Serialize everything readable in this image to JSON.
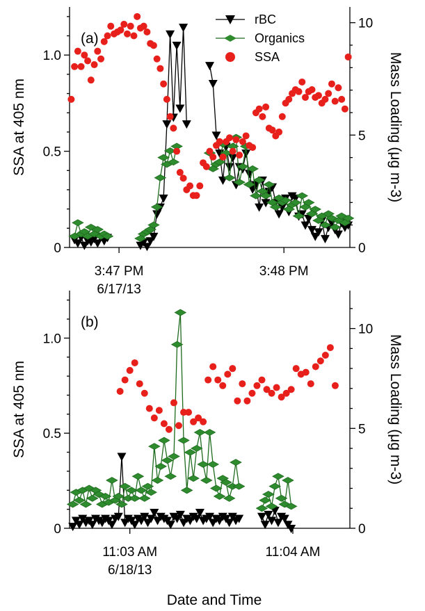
{
  "colors": {
    "rbc": "#000000",
    "organics": "#1e6b1e",
    "organics_fill": "#2e8b2e",
    "ssa": "#e8201c"
  },
  "xlabel": "Date and Time",
  "legend": {
    "rbc": "rBC",
    "organics": "Organics",
    "ssa": "SSA"
  },
  "chart_data": [
    {
      "type": "scatter",
      "panel_label": "(a)",
      "ylabel_left": "SSA at 405 nm",
      "ylabel_right": "Mass Loading (μg m-3)",
      "ylim_left": [
        0,
        1.25
      ],
      "ylim_right": [
        0,
        10.7
      ],
      "xlim_min": [
        46.7,
        48.4
      ],
      "left_ticks": [
        {
          "v": 0,
          "label": "0"
        },
        {
          "v": 0.5,
          "label": "0.5"
        },
        {
          "v": 1.0,
          "label": "1.0"
        }
      ],
      "right_ticks": [
        {
          "v": 0,
          "label": "0"
        },
        {
          "v": 5,
          "label": "5"
        },
        {
          "v": 10,
          "label": "10"
        }
      ],
      "x_ticks": [
        {
          "v": 47,
          "label": "3:47 PM",
          "label2": "6/17/13"
        },
        {
          "v": 48,
          "label": "3:48 PM",
          "label2": ""
        }
      ],
      "series": [
        {
          "name": "rBC",
          "marker": "triangle-down",
          "line": true,
          "x": [
            46.73,
            46.75,
            46.77,
            46.79,
            46.81,
            46.83,
            46.85,
            46.87,
            46.89,
            46.91,
            46.93,
            47.13,
            47.15,
            47.17,
            47.19,
            47.21,
            47.23,
            47.25,
            47.27,
            47.29,
            47.31,
            47.33,
            47.35,
            47.37,
            47.39,
            47.41,
            47.55,
            47.57,
            47.59,
            47.61,
            47.63,
            47.65,
            47.67,
            47.69,
            47.71,
            47.73,
            47.75,
            47.77,
            47.79,
            47.81,
            47.83,
            47.85,
            47.87,
            47.89,
            47.91,
            47.93,
            47.95,
            47.97,
            47.99,
            48.01,
            48.03,
            48.05,
            48.07,
            48.09,
            48.11,
            48.13,
            48.15,
            48.17,
            48.19,
            48.21,
            48.23,
            48.25,
            48.27,
            48.29,
            48.31,
            48.33,
            48.35,
            48.37,
            48.39
          ],
          "y": [
            0.35,
            0.2,
            0.45,
            0.1,
            0.3,
            0.25,
            0.4,
            0.2,
            0.5,
            0.3,
            0.45,
            0.1,
            0.25,
            0.05,
            0.3,
            0.5,
            1.5,
            1.8,
            2.2,
            5.5,
            9.5,
            5.8,
            9.0,
            6.2,
            9.8,
            5.5,
            8.1,
            7.3,
            5.0,
            4.2,
            3.0,
            4.5,
            3.6,
            4.0,
            2.8,
            3.6,
            3.5,
            4.2,
            3.3,
            2.6,
            2.8,
            1.8,
            3.0,
            2.0,
            2.5,
            2.7,
            2.0,
            1.5,
            1.8,
            2.2,
            1.6,
            2.3,
            2.2,
            1.4,
            1.5,
            1.0,
            1.3,
            0.8,
            0.5,
            0.7,
            1.2,
            0.4,
            0.9,
            1.1,
            0.8,
            0.6,
            1.1,
            0.9,
            1.0
          ]
        },
        {
          "name": "Organics",
          "marker": "diamond",
          "line": true,
          "x": [
            46.73,
            46.75,
            46.77,
            46.79,
            46.81,
            46.83,
            46.85,
            46.87,
            46.89,
            46.91,
            46.93,
            47.13,
            47.15,
            47.17,
            47.19,
            47.21,
            47.23,
            47.25,
            47.27,
            47.29,
            47.31,
            47.33,
            47.35,
            47.55,
            47.57,
            47.59,
            47.61,
            47.63,
            47.65,
            47.67,
            47.69,
            47.71,
            47.73,
            47.75,
            47.77,
            47.79,
            47.81,
            47.83,
            47.85,
            47.87,
            47.89,
            47.91,
            47.93,
            47.95,
            47.97,
            47.99,
            48.01,
            48.03,
            48.05,
            48.07,
            48.09,
            48.11,
            48.13,
            48.15,
            48.17,
            48.19,
            48.21,
            48.23,
            48.25,
            48.27,
            48.29,
            48.31,
            48.33,
            48.35,
            48.37,
            48.39
          ],
          "y": [
            0.5,
            1.1,
            0.6,
            0.7,
            0.5,
            0.9,
            0.6,
            0.8,
            0.5,
            0.6,
            0.5,
            0.4,
            0.6,
            0.7,
            0.8,
            1.0,
            1.8,
            3.1,
            4.0,
            3.7,
            4.3,
            3.8,
            4.5,
            4.2,
            3.5,
            3.7,
            3.8,
            4.6,
            4.2,
            3.1,
            4.5,
            4.9,
            2.9,
            3.6,
            4.5,
            2.8,
            3.5,
            2.3,
            3.0,
            2.5,
            2.3,
            2.8,
            2.0,
            1.8,
            2.2,
            2.0,
            2.1,
            1.7,
            1.9,
            2.0,
            1.4,
            2.3,
            1.8,
            2.0,
            1.5,
            1.7,
            1.2,
            1.4,
            1.0,
            1.5,
            1.3,
            0.9,
            1.2,
            1.4,
            1.1,
            1.3
          ]
        },
        {
          "name": "SSA",
          "marker": "circle",
          "line": false,
          "x": [
            46.71,
            46.73,
            46.75,
            46.77,
            46.79,
            46.81,
            46.83,
            46.85,
            46.87,
            46.89,
            46.91,
            46.93,
            46.95,
            46.97,
            46.99,
            47.01,
            47.03,
            47.05,
            47.07,
            47.09,
            47.11,
            47.13,
            47.15,
            47.17,
            47.19,
            47.21,
            47.23,
            47.25,
            47.27,
            47.29,
            47.31,
            47.33,
            47.35,
            47.37,
            47.39,
            47.41,
            47.43,
            47.45,
            47.47,
            47.49,
            47.51,
            47.53,
            47.55,
            47.57,
            47.59,
            47.61,
            47.63,
            47.65,
            47.67,
            47.69,
            47.71,
            47.73,
            47.75,
            47.77,
            47.79,
            47.81,
            47.83,
            47.85,
            47.87,
            47.89,
            47.91,
            47.93,
            47.95,
            47.97,
            47.99,
            48.01,
            48.03,
            48.05,
            48.07,
            48.09,
            48.11,
            48.13,
            48.15,
            48.17,
            48.19,
            48.21,
            48.23,
            48.25,
            48.27,
            48.29,
            48.31,
            48.33,
            48.35,
            48.37,
            48.39
          ],
          "y": [
            0.77,
            0.94,
            1.02,
            0.94,
            1.0,
            0.97,
            0.87,
            0.95,
            1.02,
            0.98,
            1.07,
            1.1,
            1.15,
            1.11,
            1.12,
            1.13,
            1.16,
            1.11,
            1.15,
            1.1,
            1.2,
            1.14,
            1.15,
            1.12,
            1.06,
            1.05,
            0.98,
            0.93,
            0.85,
            0.77,
            0.68,
            0.62,
            0.5,
            0.39,
            0.36,
            0.3,
            0.32,
            0.27,
            0.27,
            0.32,
            0.44,
            0.42,
            0.5,
            0.47,
            0.53,
            0.55,
            0.47,
            0.55,
            0.57,
            0.5,
            0.56,
            0.48,
            0.55,
            0.58,
            0.53,
            0.52,
            0.7,
            0.72,
            0.68,
            0.73,
            0.62,
            0.61,
            0.58,
            0.6,
            0.68,
            0.75,
            0.77,
            0.8,
            0.82,
            0.81,
            0.86,
            0.78,
            0.81,
            0.82,
            0.78,
            0.79,
            0.75,
            0.77,
            0.8,
            0.85,
            0.76,
            0.83,
            0.77,
            0.72,
            0.99
          ]
        }
      ]
    },
    {
      "type": "scatter",
      "panel_label": "(b)",
      "ylabel_left": "SSA at 405 nm",
      "ylabel_right": "Mass Loading (μg m-3)",
      "ylim_left": [
        0,
        1.25
      ],
      "ylim_right": [
        0,
        11.9
      ],
      "xlim_min": [
        2.63,
        4.35
      ],
      "left_ticks": [
        {
          "v": 0,
          "label": "0"
        },
        {
          "v": 0.5,
          "label": "0.5"
        },
        {
          "v": 1.0,
          "label": "1.0"
        }
      ],
      "right_ticks": [
        {
          "v": 0,
          "label": "0"
        },
        {
          "v": 5,
          "label": "5"
        },
        {
          "v": 10,
          "label": "10"
        }
      ],
      "x_ticks": [
        {
          "v": 3,
          "label": "11:03 AM",
          "label2": "6/18/13"
        },
        {
          "v": 4,
          "label": "11:04 AM",
          "label2": ""
        }
      ],
      "series": [
        {
          "name": "rBC",
          "marker": "triangle-down",
          "line": true,
          "x": [
            2.65,
            2.67,
            2.69,
            2.71,
            2.73,
            2.75,
            2.77,
            2.79,
            2.81,
            2.83,
            2.85,
            2.87,
            2.89,
            2.91,
            2.93,
            2.95,
            2.97,
            2.99,
            3.01,
            3.03,
            3.05,
            3.07,
            3.09,
            3.11,
            3.13,
            3.15,
            3.17,
            3.19,
            3.21,
            3.23,
            3.25,
            3.27,
            3.29,
            3.31,
            3.33,
            3.35,
            3.37,
            3.39,
            3.41,
            3.43,
            3.45,
            3.47,
            3.49,
            3.51,
            3.53,
            3.55,
            3.57,
            3.59,
            3.61,
            3.63,
            3.65,
            3.67,
            3.81,
            3.83,
            3.85,
            3.87,
            3.89,
            3.91,
            3.93,
            3.95,
            3.97,
            3.99
          ],
          "y": [
            0.1,
            0.4,
            0.2,
            0.5,
            0.3,
            0.4,
            0.2,
            0.5,
            0.4,
            0.3,
            0.5,
            0.4,
            0.2,
            0.5,
            0.6,
            3.6,
            0.3,
            0.5,
            0.4,
            0.2,
            0.5,
            0.4,
            0.6,
            0.3,
            0.5,
            0.8,
            0.4,
            0.6,
            0.5,
            0.4,
            0.2,
            0.6,
            0.5,
            0.7,
            0.3,
            0.5,
            0.4,
            0.6,
            0.5,
            0.8,
            0.4,
            0.5,
            0.6,
            0.3,
            0.5,
            0.4,
            0.6,
            0.5,
            0.3,
            0.6,
            0.4,
            0.5,
            0.6,
            0.2,
            0.7,
            0.4,
            0.9,
            0.3,
            0.6,
            0.5,
            0.2,
            0.0
          ]
        },
        {
          "name": "Organics",
          "marker": "diamond",
          "line": true,
          "x": [
            2.65,
            2.67,
            2.69,
            2.71,
            2.73,
            2.75,
            2.77,
            2.79,
            2.81,
            2.83,
            2.85,
            2.87,
            2.89,
            2.91,
            2.93,
            2.95,
            2.97,
            2.99,
            3.01,
            3.03,
            3.05,
            3.07,
            3.09,
            3.11,
            3.13,
            3.15,
            3.17,
            3.19,
            3.21,
            3.23,
            3.25,
            3.27,
            3.29,
            3.31,
            3.33,
            3.35,
            3.37,
            3.39,
            3.41,
            3.43,
            3.45,
            3.47,
            3.49,
            3.51,
            3.53,
            3.55,
            3.57,
            3.59,
            3.61,
            3.63,
            3.65,
            3.67,
            3.81,
            3.83,
            3.85,
            3.87,
            3.89,
            3.91,
            3.93,
            3.95,
            3.97,
            3.99
          ],
          "y": [
            1.2,
            1.8,
            1.4,
            1.9,
            1.2,
            2.0,
            1.5,
            1.9,
            1.7,
            1.2,
            1.6,
            1.3,
            2.4,
            1.4,
            1.6,
            1.2,
            2.1,
            1.5,
            1.9,
            1.5,
            2.6,
            1.9,
            1.5,
            2.1,
            1.8,
            4.1,
            2.4,
            3.1,
            4.4,
            3.4,
            2.6,
            3.6,
            9.2,
            10.8,
            4.4,
            1.9,
            3.8,
            2.5,
            4.0,
            4.8,
            3.2,
            2.4,
            4.8,
            3.2,
            2.0,
            1.6,
            2.5,
            2.3,
            1.5,
            2.1,
            3.3,
            2.1,
            1.0,
            1.4,
            1.7,
            1.1,
            2.1,
            2.6,
            1.5,
            1.2,
            2.4,
            1.1
          ]
        },
        {
          "name": "SSA",
          "marker": "circle",
          "line": false,
          "x": [
            2.94,
            2.97,
            3.0,
            3.03,
            3.06,
            3.09,
            3.12,
            3.15,
            3.18,
            3.21,
            3.24,
            3.27,
            3.3,
            3.33,
            3.36,
            3.39,
            3.42,
            3.45,
            3.48,
            3.51,
            3.54,
            3.57,
            3.6,
            3.63,
            3.66,
            3.69,
            3.72,
            3.75,
            3.78,
            3.81,
            3.84,
            3.87,
            3.9,
            3.93,
            3.96,
            3.99,
            4.02,
            4.05,
            4.08,
            4.11,
            4.14,
            4.17,
            4.2,
            4.23,
            4.26
          ],
          "y": [
            0.72,
            0.78,
            0.83,
            0.87,
            0.76,
            0.71,
            0.63,
            0.58,
            0.62,
            0.55,
            0.52,
            0.66,
            0.54,
            0.61,
            0.61,
            0.56,
            0.58,
            0.56,
            0.78,
            0.85,
            0.78,
            0.75,
            0.81,
            0.84,
            0.67,
            0.76,
            0.67,
            0.71,
            0.75,
            0.78,
            0.73,
            0.71,
            0.74,
            0.69,
            0.71,
            0.73,
            0.84,
            0.81,
            0.82,
            0.76,
            0.85,
            0.88,
            0.91,
            0.95,
            0.75
          ]
        }
      ]
    }
  ]
}
